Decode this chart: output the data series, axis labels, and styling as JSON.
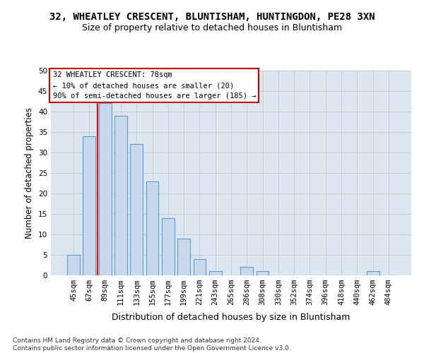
{
  "title1": "32, WHEATLEY CRESCENT, BLUNTISHAM, HUNTINGDON, PE28 3XN",
  "title2": "Size of property relative to detached houses in Bluntisham",
  "xlabel": "Distribution of detached houses by size in Bluntisham",
  "ylabel": "Number of detached properties",
  "footnote": "Contains HM Land Registry data © Crown copyright and database right 2024.\nContains public sector information licensed under the Open Government Licence v3.0.",
  "bar_labels": [
    "45sqm",
    "67sqm",
    "89sqm",
    "111sqm",
    "133sqm",
    "155sqm",
    "177sqm",
    "199sqm",
    "221sqm",
    "243sqm",
    "265sqm",
    "286sqm",
    "308sqm",
    "330sqm",
    "352sqm",
    "374sqm",
    "396sqm",
    "418sqm",
    "440sqm",
    "462sqm",
    "484sqm"
  ],
  "bar_values": [
    5,
    34,
    42,
    39,
    32,
    23,
    14,
    9,
    4,
    1,
    0,
    2,
    1,
    0,
    0,
    0,
    0,
    0,
    0,
    1,
    0
  ],
  "bar_color": "#c8d9ee",
  "bar_edge_color": "#5b9bd5",
  "bar_width": 0.8,
  "ylim": [
    0,
    50
  ],
  "yticks": [
    0,
    5,
    10,
    15,
    20,
    25,
    30,
    35,
    40,
    45,
    50
  ],
  "red_line_x": 1.5,
  "annotation_box_text": "32 WHEATLEY CRESCENT: 78sqm\n← 10% of detached houses are smaller (20)\n90% of semi-detached houses are larger (185) →",
  "annotation_box_color": "#ffffff",
  "annotation_box_edge_color": "#cc0000",
  "grid_color": "#cccccc",
  "bg_color": "#dce6f0",
  "title1_fontsize": 10,
  "title2_fontsize": 9,
  "xlabel_fontsize": 9,
  "ylabel_fontsize": 8.5,
  "tick_fontsize": 7.5,
  "annotation_fontsize": 7.5,
  "footnote_fontsize": 6.5
}
